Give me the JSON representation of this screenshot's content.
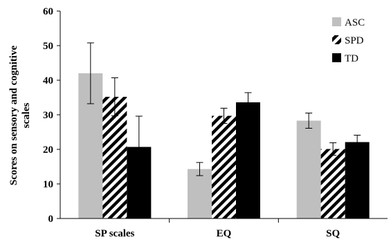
{
  "chart_data": {
    "type": "bar",
    "categories": [
      "SP scales",
      "EQ",
      "SQ"
    ],
    "series": [
      {
        "name": "ASC",
        "values": [
          42.0,
          14.3,
          28.3
        ],
        "errors": [
          8.8,
          1.9,
          2.2
        ],
        "color": "#bfbfbf",
        "pattern": "solid"
      },
      {
        "name": "SPD",
        "values": [
          35.2,
          29.7,
          20.1
        ],
        "errors": [
          5.5,
          2.2,
          1.8
        ],
        "color": "#000000",
        "pattern": "diagonal-stripes"
      },
      {
        "name": "TD",
        "values": [
          20.7,
          33.6,
          22.1
        ],
        "errors": [
          8.9,
          2.8,
          2.0
        ],
        "color": "#000000",
        "pattern": "solid"
      }
    ],
    "ylabel": "Scores on sensory and cognitive scales",
    "ylabel_lines": [
      "Scores on sensory and cognitive",
      "scales"
    ],
    "ylim": [
      0,
      60
    ],
    "yticks": [
      0,
      10,
      20,
      30,
      40,
      50,
      60
    ],
    "grid": false,
    "legend_position": "top-right"
  }
}
